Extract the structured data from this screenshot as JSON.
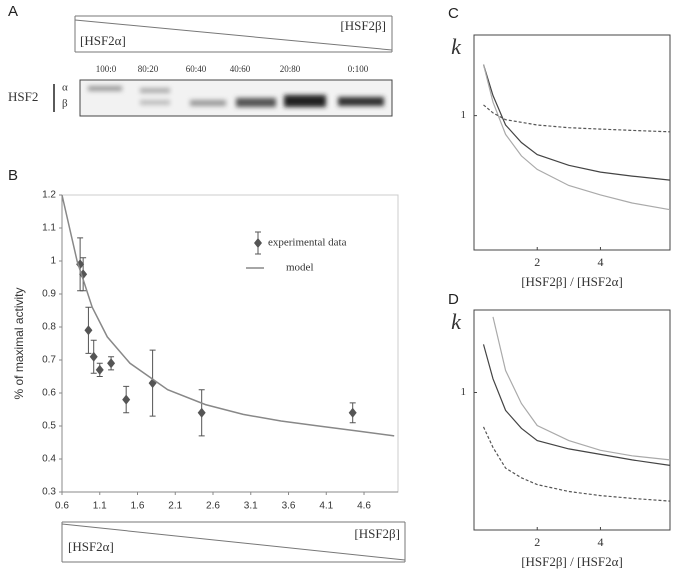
{
  "panel_a": {
    "label": "A",
    "left_gradient": "[HSF2α]",
    "right_gradient": "[HSF2β]",
    "lanes": [
      "100:0",
      "80:20",
      "60:40",
      "40:60",
      "20:80",
      "0:100"
    ],
    "protein": "HSF2",
    "isoforms": [
      "α",
      "β"
    ]
  },
  "chart_data": [
    {
      "type": "scatter",
      "label": "B",
      "ylabel": "% of maximal activity",
      "left_gradient": "[HSF2α]",
      "right_gradient": "[HSF2β]",
      "xlim": [
        0.6,
        5.05
      ],
      "xticks": [
        0.6,
        1.1,
        1.6,
        2.1,
        2.6,
        3.1,
        3.6,
        4.1,
        4.6
      ],
      "ylim": [
        0.3,
        1.2
      ],
      "yticks": [
        0.3,
        0.4,
        0.5,
        0.6,
        0.7,
        0.8,
        0.9,
        1,
        1.1,
        1.2
      ],
      "series": [
        {
          "name": "experimental data",
          "type": "scatter",
          "color": "#555555",
          "x": [
            0.84,
            0.88,
            0.95,
            1.02,
            1.1,
            1.25,
            1.45,
            1.8,
            2.45,
            4.45
          ],
          "values": [
            0.99,
            0.96,
            0.79,
            0.71,
            0.67,
            0.69,
            0.58,
            0.63,
            0.54,
            0.54
          ],
          "errors": [
            0.08,
            0.05,
            0.07,
            0.05,
            0.02,
            0.02,
            0.04,
            0.1,
            0.07,
            0.03
          ]
        },
        {
          "name": "model",
          "type": "line",
          "color": "#888888",
          "x": [
            0.6,
            0.8,
            1.0,
            1.2,
            1.5,
            2.0,
            2.5,
            3.0,
            3.5,
            4.0,
            4.5,
            5.0
          ],
          "values": [
            1.2,
            1.0,
            0.86,
            0.77,
            0.69,
            0.61,
            0.565,
            0.535,
            0.515,
            0.5,
            0.485,
            0.47
          ]
        }
      ]
    },
    {
      "type": "line",
      "label": "C",
      "ylabel": "k",
      "xlabel": "[HSF2β] / [HSF2α]",
      "xlim": [
        0,
        6.2
      ],
      "xticks": [
        2,
        4
      ],
      "ylim": [
        0,
        1.6
      ],
      "yticks": [
        1
      ],
      "x": [
        0.3,
        0.6,
        1,
        1.5,
        2,
        3,
        4,
        5,
        6.2
      ],
      "series": [
        {
          "color": "#444444",
          "dash": false,
          "values": [
            1.38,
            1.15,
            0.93,
            0.8,
            0.71,
            0.63,
            0.58,
            0.55,
            0.52
          ]
        },
        {
          "color": "#aaaaaa",
          "dash": false,
          "values": [
            1.38,
            1.1,
            0.86,
            0.7,
            0.6,
            0.48,
            0.41,
            0.35,
            0.3
          ]
        },
        {
          "color": "#555555",
          "dash": true,
          "values": [
            1.08,
            1.02,
            0.97,
            0.95,
            0.93,
            0.91,
            0.9,
            0.89,
            0.88
          ]
        }
      ]
    },
    {
      "type": "line",
      "label": "D",
      "ylabel": "k",
      "xlabel": "[HSF2β] / [HSF2α]",
      "xlim": [
        0,
        6.2
      ],
      "xticks": [
        2,
        4
      ],
      "ylim": [
        0,
        1.6
      ],
      "yticks": [
        1
      ],
      "x": [
        0.3,
        0.6,
        1,
        1.5,
        2,
        3,
        4,
        5,
        6.2
      ],
      "series": [
        {
          "color": "#444444",
          "dash": false,
          "values": [
            1.35,
            1.1,
            0.87,
            0.74,
            0.65,
            0.59,
            0.55,
            0.51,
            0.47
          ]
        },
        {
          "color": "#aaaaaa",
          "dash": false,
          "values": [
            null,
            1.55,
            1.16,
            0.92,
            0.76,
            0.65,
            0.58,
            0.54,
            0.51
          ]
        },
        {
          "color": "#555555",
          "dash": true,
          "values": [
            0.75,
            0.6,
            0.45,
            0.38,
            0.33,
            0.28,
            0.25,
            0.23,
            0.21
          ]
        }
      ]
    }
  ]
}
